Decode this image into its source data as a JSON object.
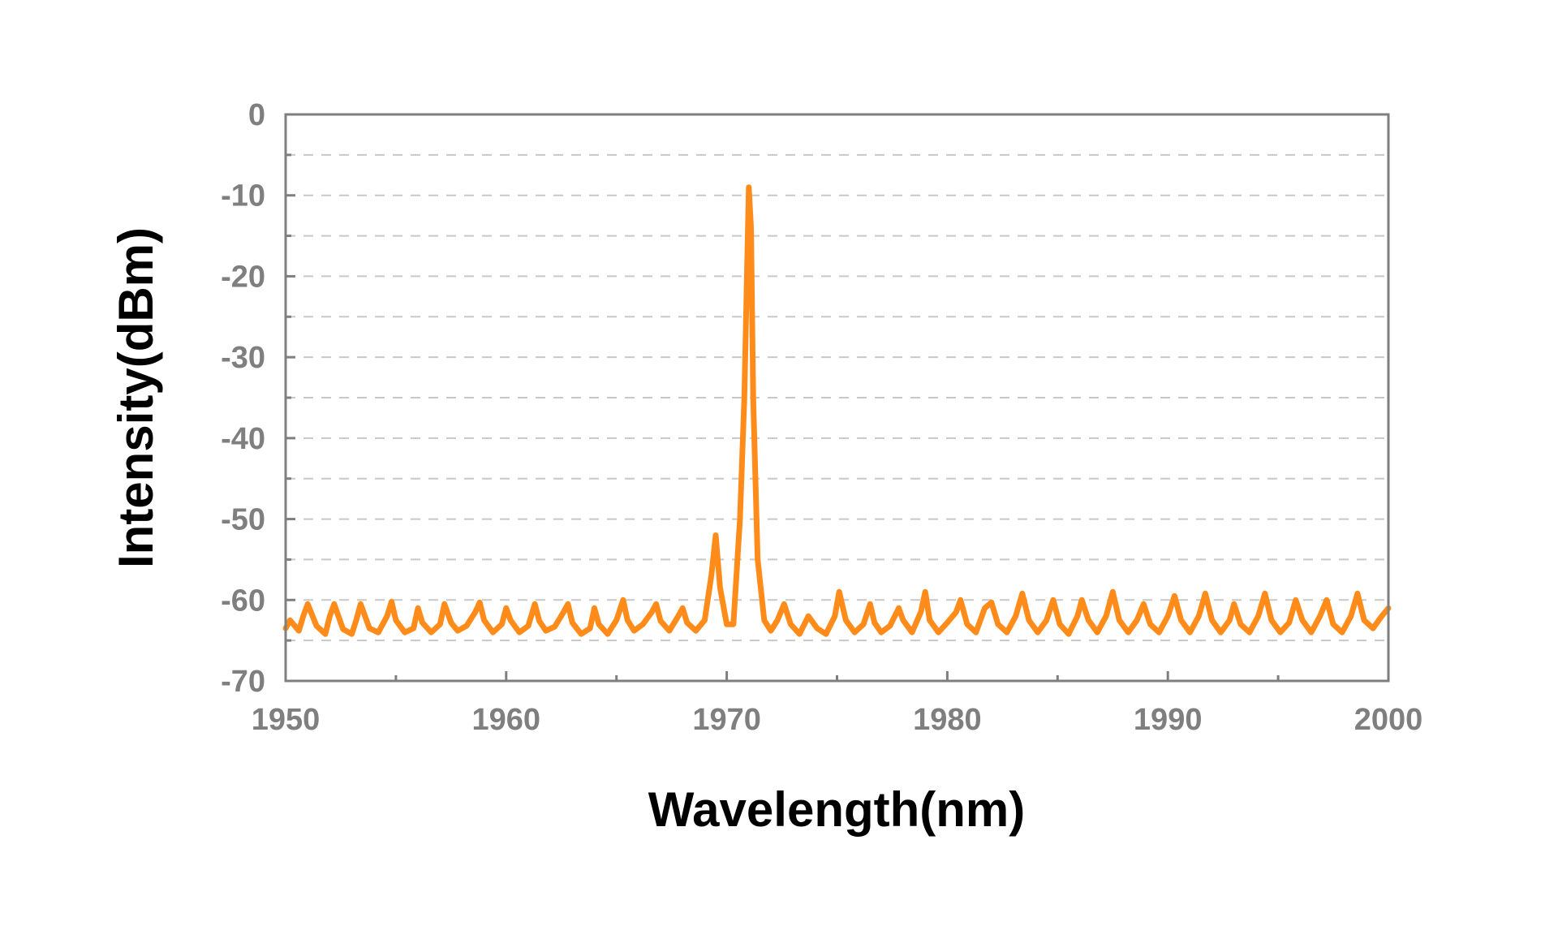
{
  "chart_data": {
    "type": "line",
    "title": "",
    "xlabel": "Wavelength(nm)",
    "ylabel": "Intensity(dBm)",
    "xlim": [
      1950,
      2000
    ],
    "ylim": [
      -70,
      0
    ],
    "xticks": [
      1950,
      1960,
      1970,
      1980,
      1990,
      2000
    ],
    "xtick_labels": [
      "1950",
      "1960",
      "1970",
      "1980",
      "1990",
      "2000"
    ],
    "yticks": [
      0,
      -10,
      -20,
      -30,
      -40,
      -50,
      -60,
      -70
    ],
    "ytick_labels": [
      "0",
      "-10",
      "-20",
      "-30",
      "-40",
      "-50",
      "-60",
      "-70"
    ],
    "grid": "horizontal dashed, every 5 dBm",
    "legend": "none",
    "colors": {
      "line": "#ff8c1a",
      "frame": "#7f7f7f",
      "grid": "#c8c8c8",
      "tick_text": "#7f7f7f",
      "axis_title": "#000000"
    },
    "series": [
      {
        "x": [
          1950.0,
          1950.2,
          1950.6,
          1950.8,
          1951.0,
          1951.4,
          1951.8,
          1952.0,
          1952.2,
          1952.6,
          1953.0,
          1953.2,
          1953.4,
          1953.8,
          1954.2,
          1954.6,
          1954.8,
          1955.0,
          1955.4,
          1955.8,
          1956.0,
          1956.2,
          1956.6,
          1957.0,
          1957.2,
          1957.5,
          1957.8,
          1958.2,
          1958.6,
          1958.8,
          1959.0,
          1959.4,
          1959.8,
          1960.0,
          1960.2,
          1960.6,
          1961.0,
          1961.3,
          1961.5,
          1961.8,
          1962.2,
          1962.6,
          1962.8,
          1963.0,
          1963.4,
          1963.8,
          1964.0,
          1964.2,
          1964.6,
          1965.0,
          1965.3,
          1965.5,
          1965.8,
          1966.2,
          1966.6,
          1966.8,
          1967.0,
          1967.4,
          1967.8,
          1968.0,
          1968.2,
          1968.6,
          1969.0,
          1969.3,
          1969.5,
          1969.7,
          1970.0,
          1970.3,
          1970.6,
          1970.8,
          1971.0,
          1971.1,
          1971.2,
          1971.4,
          1971.7,
          1972.0,
          1972.3,
          1972.6,
          1972.9,
          1973.3,
          1973.7,
          1974.1,
          1974.5,
          1974.9,
          1975.1,
          1975.4,
          1975.8,
          1976.2,
          1976.5,
          1976.7,
          1977.0,
          1977.4,
          1977.8,
          1978.0,
          1978.4,
          1978.8,
          1979.0,
          1979.2,
          1979.6,
          1980.0,
          1980.4,
          1980.6,
          1980.9,
          1981.3,
          1981.7,
          1982.0,
          1982.3,
          1982.7,
          1983.1,
          1983.4,
          1983.7,
          1984.1,
          1984.5,
          1984.8,
          1985.1,
          1985.5,
          1985.9,
          1986.1,
          1986.4,
          1986.8,
          1987.2,
          1987.5,
          1987.8,
          1988.2,
          1988.6,
          1988.9,
          1989.2,
          1989.6,
          1990.0,
          1990.3,
          1990.6,
          1991.0,
          1991.4,
          1991.7,
          1992.0,
          1992.4,
          1992.8,
          1993.0,
          1993.3,
          1993.7,
          1994.1,
          1994.4,
          1994.7,
          1995.1,
          1995.5,
          1995.8,
          1996.1,
          1996.5,
          1996.9,
          1997.2,
          1997.5,
          1997.9,
          1998.3,
          1998.6,
          1998.9,
          1999.3,
          1999.7,
          2000.0
        ],
        "y": [
          -63.5,
          -62.5,
          -63.8,
          -62.0,
          -60.5,
          -63.2,
          -64.2,
          -62.0,
          -60.5,
          -63.6,
          -64.2,
          -62.5,
          -60.5,
          -63.5,
          -64.0,
          -62.0,
          -60.2,
          -62.5,
          -64.0,
          -63.5,
          -61.0,
          -62.8,
          -64.0,
          -63.0,
          -60.5,
          -62.8,
          -63.8,
          -63.2,
          -61.5,
          -60.3,
          -62.5,
          -64.0,
          -63.0,
          -61.0,
          -62.5,
          -64.0,
          -63.2,
          -60.5,
          -62.6,
          -63.8,
          -63.3,
          -61.5,
          -60.5,
          -62.8,
          -64.2,
          -63.5,
          -61.0,
          -63.0,
          -64.2,
          -62.5,
          -60.0,
          -62.5,
          -63.8,
          -63.0,
          -61.5,
          -60.5,
          -62.6,
          -63.8,
          -62.0,
          -61.0,
          -62.8,
          -63.8,
          -62.5,
          -57.0,
          -52.0,
          -58.5,
          -63.0,
          -63.0,
          -50.0,
          -35.0,
          -9.0,
          -14.0,
          -35.0,
          -55.0,
          -62.5,
          -63.8,
          -62.5,
          -60.5,
          -63.0,
          -64.2,
          -62.0,
          -63.5,
          -64.2,
          -62.0,
          -59.0,
          -62.5,
          -64.0,
          -63.0,
          -60.5,
          -62.8,
          -64.0,
          -63.2,
          -61.0,
          -62.5,
          -64.0,
          -61.5,
          -59.0,
          -62.5,
          -64.0,
          -62.8,
          -61.5,
          -60.0,
          -63.0,
          -64.0,
          -61.0,
          -60.3,
          -63.0,
          -64.0,
          -62.0,
          -59.2,
          -62.5,
          -64.0,
          -62.5,
          -60.0,
          -63.0,
          -64.2,
          -62.0,
          -60.0,
          -62.5,
          -64.0,
          -62.0,
          -59.0,
          -62.5,
          -64.0,
          -62.5,
          -60.5,
          -63.0,
          -64.0,
          -62.0,
          -59.5,
          -62.5,
          -64.0,
          -62.0,
          -59.2,
          -62.5,
          -64.0,
          -62.5,
          -60.5,
          -63.0,
          -64.0,
          -62.0,
          -59.2,
          -62.5,
          -64.0,
          -62.8,
          -60.0,
          -62.5,
          -64.0,
          -62.0,
          -60.0,
          -63.0,
          -64.0,
          -62.0,
          -59.2,
          -62.5,
          -63.5,
          -62.0,
          -61.0
        ]
      }
    ]
  }
}
